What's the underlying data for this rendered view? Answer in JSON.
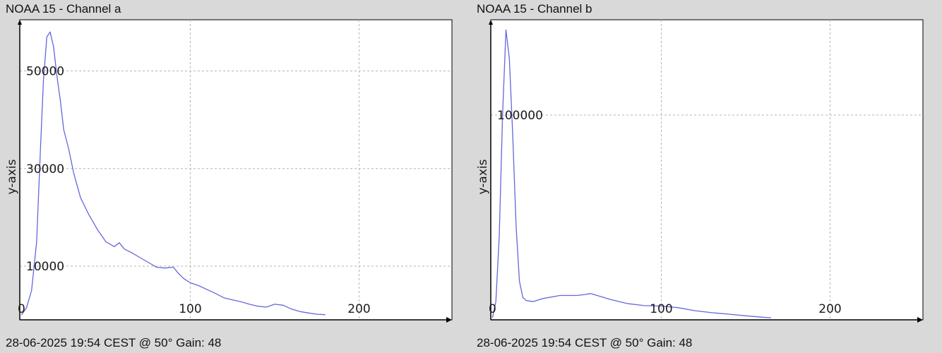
{
  "colors": {
    "background": "#d9d9d9",
    "plot_area": "#ffffff",
    "grid": "#b4b4b4",
    "axis": "#000000",
    "series": "#6666dd"
  },
  "panels": [
    {
      "title": "NOAA 15 - Channel a",
      "footer": "28-06-2025 19:54 CEST @ 50° Gain: 48"
    },
    {
      "title": "NOAA 15 - Channel b",
      "footer": "28-06-2025 19:54 CEST @ 50° Gain: 48"
    }
  ],
  "chart_data": [
    {
      "type": "line",
      "title": "NOAA 15 - Channel a",
      "xlabel": "",
      "ylabel": "y-axis",
      "xlim": [
        -1,
        255
      ],
      "ylim": [
        -1000,
        60500
      ],
      "grid": true,
      "x_ticks": [
        0,
        100,
        200
      ],
      "y_ticks": [
        10000,
        30000,
        50000
      ],
      "x_tick_labels": [
        "0",
        "100",
        "200"
      ],
      "y_tick_labels": [
        "10000",
        "30000",
        "50000"
      ],
      "x": [
        0,
        3,
        6,
        9,
        11,
        13,
        15,
        17,
        19,
        21,
        23,
        25,
        28,
        31,
        35,
        40,
        45,
        50,
        55,
        58,
        61,
        65,
        70,
        75,
        80,
        85,
        90,
        93,
        96,
        100,
        105,
        110,
        115,
        120,
        125,
        130,
        135,
        140,
        145,
        150,
        155,
        160,
        165,
        170,
        175,
        180
      ],
      "y": [
        0,
        1500,
        5000,
        15000,
        32000,
        48000,
        57000,
        58000,
        55000,
        49000,
        44000,
        38000,
        34000,
        29000,
        24000,
        20500,
        17500,
        15000,
        14000,
        14800,
        13500,
        12800,
        11800,
        10800,
        9800,
        9600,
        9800,
        8500,
        7500,
        6600,
        6000,
        5200,
        4400,
        3500,
        3100,
        2700,
        2200,
        1800,
        1600,
        2200,
        2000,
        1200,
        700,
        400,
        150,
        50
      ]
    },
    {
      "type": "line",
      "title": "NOAA 15 - Channel b",
      "xlabel": "",
      "ylabel": "y-axis",
      "xlim": [
        -1,
        255
      ],
      "ylim": [
        -1000,
        147000
      ],
      "grid": true,
      "x_ticks": [
        0,
        100,
        200
      ],
      "y_ticks": [
        100000
      ],
      "x_tick_labels": [
        "0",
        "100",
        "200"
      ],
      "y_tick_labels": [
        "100000"
      ],
      "x": [
        0,
        2,
        4,
        6,
        8,
        10,
        12,
        14,
        16,
        18,
        20,
        24,
        30,
        40,
        50,
        55,
        58,
        62,
        70,
        80,
        90,
        100,
        110,
        120,
        130,
        140,
        150,
        160,
        165
      ],
      "y": [
        0,
        8000,
        40000,
        100000,
        142000,
        128000,
        90000,
        45000,
        18000,
        10000,
        8500,
        8000,
        9500,
        11000,
        11000,
        11500,
        12000,
        11000,
        9000,
        7000,
        6000,
        5800,
        5000,
        3500,
        2500,
        1800,
        1000,
        300,
        0
      ]
    }
  ]
}
